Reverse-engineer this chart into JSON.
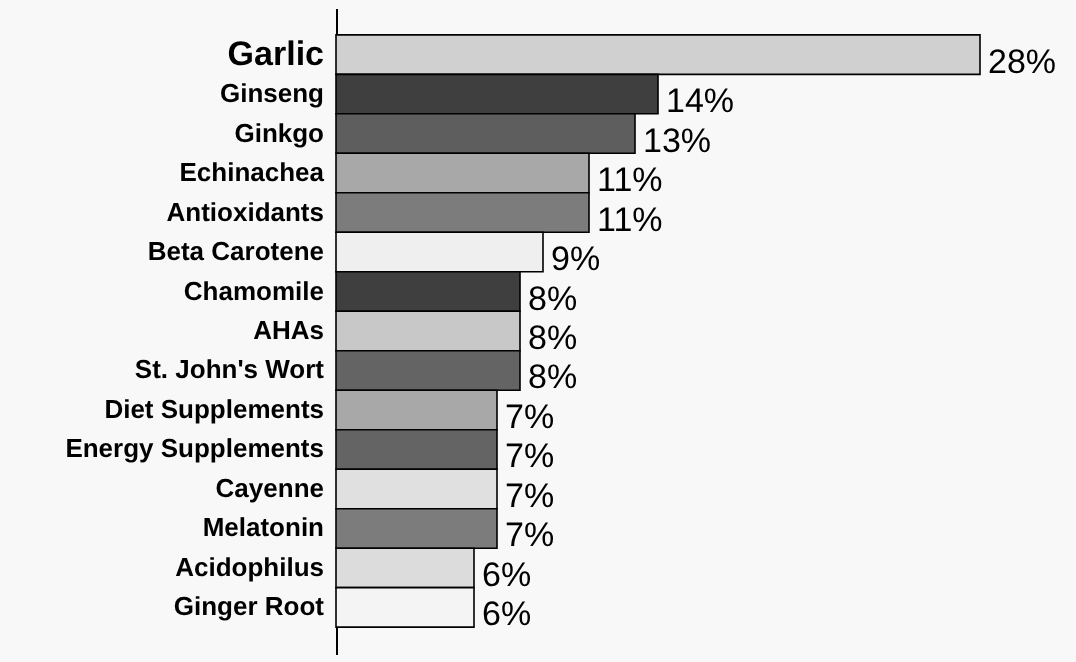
{
  "chart_data": {
    "type": "bar",
    "orientation": "horizontal",
    "categories": [
      "Garlic",
      "Ginseng",
      "Ginkgo",
      "Echinachea",
      "Antioxidants",
      "Beta Carotene",
      "Chamomile",
      "AHAs",
      "St. John's Wort",
      "Diet Supplements",
      "Energy Supplements",
      "Cayenne",
      "Melatonin",
      "Acidophilus",
      "Ginger Root"
    ],
    "values": [
      28,
      14,
      13,
      11,
      11,
      9,
      8,
      8,
      8,
      7,
      7,
      7,
      7,
      6,
      6
    ],
    "value_labels": [
      "28%",
      "14%",
      "13%",
      "11%",
      "11%",
      "9%",
      "8%",
      "8%",
      "8%",
      "7%",
      "7%",
      "7%",
      "7%",
      "6%",
      "6%"
    ],
    "colors": [
      "#d0d0d0",
      "#3f3f3f",
      "#5e5e5e",
      "#a8a8a8",
      "#7c7c7c",
      "#efefef",
      "#3f3f3f",
      "#c8c8c8",
      "#646464",
      "#a8a8a8",
      "#646464",
      "#e0e0e0",
      "#7c7c7c",
      "#dcdcdc",
      "#f4f4f4"
    ]
  }
}
